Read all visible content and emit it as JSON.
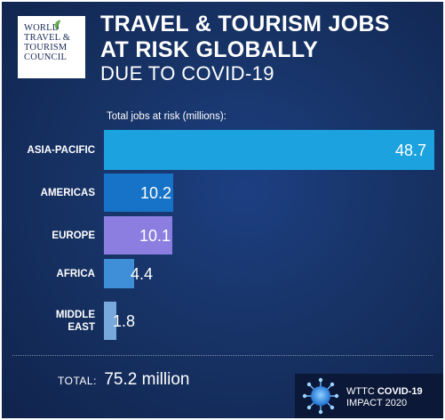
{
  "logo": {
    "lines": [
      "WORLD",
      "TRAVEL &",
      "TOURISM",
      "COUNCIL"
    ]
  },
  "header": {
    "title_line1": "TRAVEL & TOURISM JOBS",
    "title_line2": "AT RISK GLOBALLY",
    "subtitle": "DUE TO COVID-19"
  },
  "colors": {
    "asia_pacific": "#1ba2df",
    "americas": "#1773c8",
    "europe": "#8c7ee0",
    "africa": "#3f8fd8",
    "middle_east": "#78a9dd",
    "background": "#163263"
  },
  "chart_data": {
    "type": "bar",
    "orientation": "horizontal",
    "title": "TRAVEL & TOURISM JOBS AT RISK GLOBALLY",
    "subtitle": "DUE TO COVID-19",
    "xlabel": "Total jobs at risk (millions):",
    "ylabel": "",
    "categories": [
      "ASIA-PACIFIC",
      "AMERICAS",
      "EUROPE",
      "AFRICA",
      "MIDDLE EAST"
    ],
    "category_lines": [
      [
        "ASIA-PACIFIC"
      ],
      [
        "AMERICAS"
      ],
      [
        "EUROPE"
      ],
      [
        "AFRICA"
      ],
      [
        "MIDDLE",
        "EAST"
      ]
    ],
    "values": [
      48.7,
      10.2,
      10.1,
      4.4,
      1.8
    ],
    "value_labels": [
      "48.7",
      "10.2",
      "10.1",
      "4.4",
      "1.8"
    ],
    "xlim": [
      0,
      48.7
    ],
    "grid": false,
    "legend": "none"
  },
  "total": {
    "label": "TOTAL:",
    "value": "75.2 million"
  },
  "footer": {
    "prefix": "WTTC",
    "bold": "COVID-19",
    "line2": "IMPACT 2020",
    "icon": "virus-icon"
  }
}
